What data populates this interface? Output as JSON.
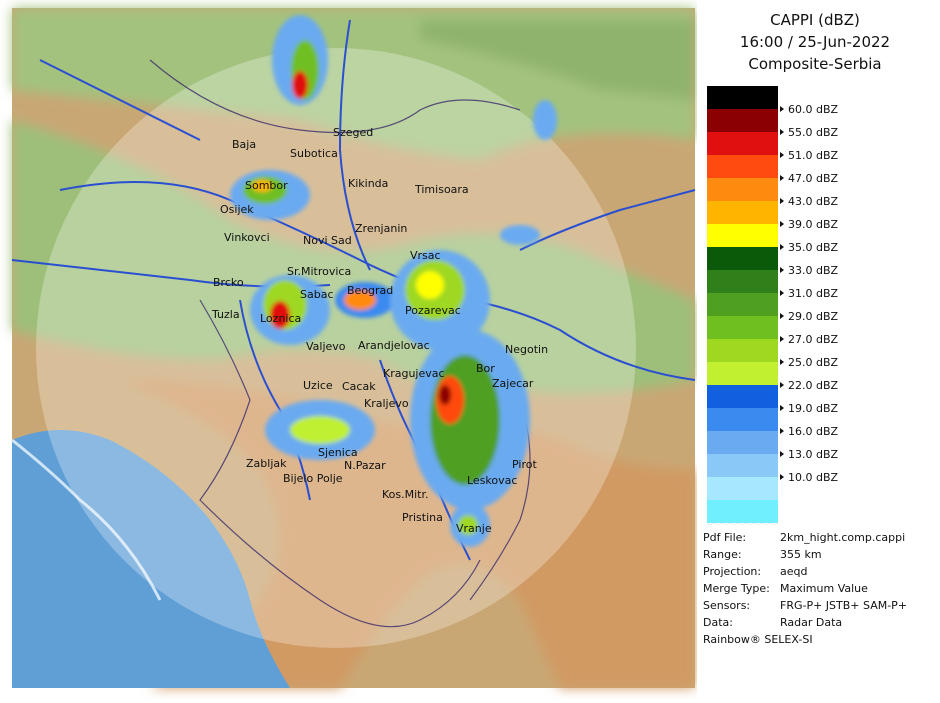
{
  "header": {
    "title": "CAPPI (dBZ)",
    "time": "16:00 / 25-Jun-2022",
    "region": "Composite-Serbia"
  },
  "legend": {
    "colors": [
      "#000000",
      "#8b0000",
      "#e01010",
      "#ff4a10",
      "#ff8a10",
      "#ffb400",
      "#ffff00",
      "#0a5a0a",
      "#2f7f1a",
      "#4f9f20",
      "#6fbf20",
      "#9fd820",
      "#c0f030",
      "#1060e0",
      "#3a8af0",
      "#6aaaf0",
      "#8ac8f8",
      "#a8e8ff",
      "#70f0ff"
    ],
    "labels": [
      "60.0 dBZ",
      "55.0 dBZ",
      "51.0 dBZ",
      "47.0 dBZ",
      "43.0 dBZ",
      "39.0 dBZ",
      "35.0 dBZ",
      "33.0 dBZ",
      "31.0 dBZ",
      "29.0 dBZ",
      "27.0 dBZ",
      "25.0 dBZ",
      "22.0 dBZ",
      "19.0 dBZ",
      "16.0 dBZ",
      "13.0 dBZ",
      "10.0 dBZ"
    ]
  },
  "info": [
    [
      "Pdf File:",
      "2km_hight.comp.cappi"
    ],
    [
      "Range:",
      "355 km"
    ],
    [
      "Projection:",
      "aeqd"
    ],
    [
      "Merge Type:",
      "Maximum Value"
    ],
    [
      "Sensors:",
      "FRG-P+ JSTB+ SAM-P+"
    ],
    [
      "Data:",
      "Radar Data"
    ]
  ],
  "footer": "Rainbow® SELEX-SI",
  "cities": [
    "Szeged",
    "Baja",
    "Subotica",
    "Sombor",
    "Kikinda",
    "Timisoara",
    "Osijek",
    "Vinkovci",
    "Novi Sad",
    "Zrenjanin",
    "Vrsac",
    "Brcko",
    "Sr.Mitrovica",
    "Sabac",
    "Beograd",
    "Pozarevac",
    "Tuzla",
    "Loznica",
    "Valjevo",
    "Arandjelovac",
    "Negotin",
    "Kragujevac",
    "Bor",
    "Zajecar",
    "Uzice",
    "Cacak",
    "Kraljevo",
    "Sjenica",
    "Zabljak",
    "N.Pazar",
    "Bijelo Polje",
    "Kos.Mitr.",
    "Pristina",
    "Pirot",
    "Leskovac",
    "Vranje"
  ]
}
